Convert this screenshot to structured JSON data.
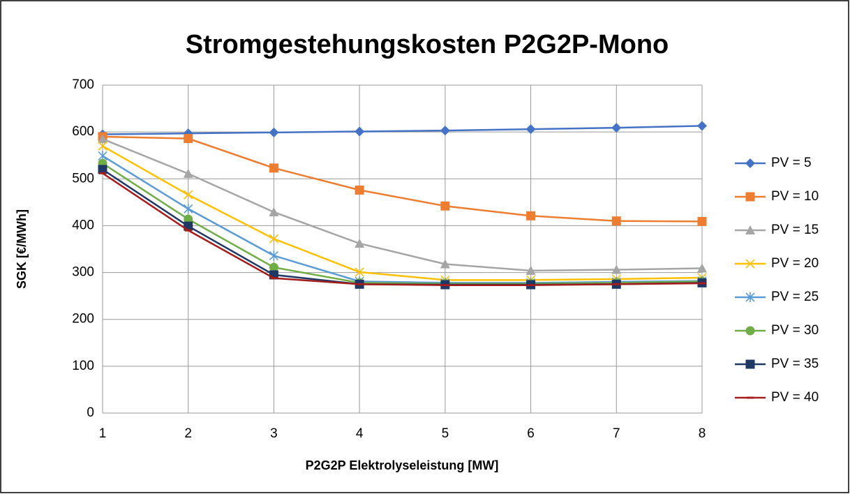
{
  "chart_data": {
    "type": "line",
    "title": "Stromgestehungskosten P2G2P-Mono",
    "xlabel": "P2G2P Elektrolyseleistung [MW]",
    "ylabel": "SGK [€/MWh]",
    "x": [
      1,
      2,
      3,
      4,
      5,
      6,
      7,
      8
    ],
    "xlim": [
      1,
      8
    ],
    "xticks": [
      1,
      2,
      3,
      4,
      5,
      6,
      7,
      8
    ],
    "ylim": [
      0,
      700
    ],
    "yticks": [
      0,
      100,
      200,
      300,
      400,
      500,
      600,
      700
    ],
    "grid": true,
    "legend": "right",
    "series": [
      {
        "name": "PV = 5",
        "color": "#4472c4",
        "marker": "diamond",
        "values": [
          595,
          597,
          599,
          601,
          603,
          606,
          609,
          613
        ]
      },
      {
        "name": "PV = 10",
        "color": "#ed7d31",
        "marker": "square",
        "values": [
          590,
          586,
          523,
          476,
          442,
          421,
          410,
          409
        ]
      },
      {
        "name": "PV = 15",
        "color": "#a5a5a5",
        "marker": "triangle",
        "values": [
          585,
          511,
          429,
          362,
          318,
          304,
          306,
          309
        ]
      },
      {
        "name": "PV = 20",
        "color": "#ffc000",
        "marker": "x",
        "values": [
          570,
          466,
          372,
          301,
          284,
          284,
          286,
          289
        ]
      },
      {
        "name": "PV = 25",
        "color": "#5b9bd5",
        "marker": "star",
        "values": [
          549,
          436,
          336,
          281,
          278,
          278,
          280,
          282
        ]
      },
      {
        "name": "PV = 30",
        "color": "#70ad47",
        "marker": "circle",
        "values": [
          533,
          414,
          311,
          278,
          276,
          276,
          278,
          281
        ]
      },
      {
        "name": "PV = 35",
        "color": "#203864",
        "marker": "square",
        "values": [
          520,
          399,
          295,
          275,
          274,
          274,
          275,
          278
        ]
      },
      {
        "name": "PV = 40",
        "color": "#a51c1c",
        "marker": "dash",
        "values": [
          512,
          390,
          288,
          275,
          273,
          273,
          275,
          277
        ]
      }
    ]
  }
}
